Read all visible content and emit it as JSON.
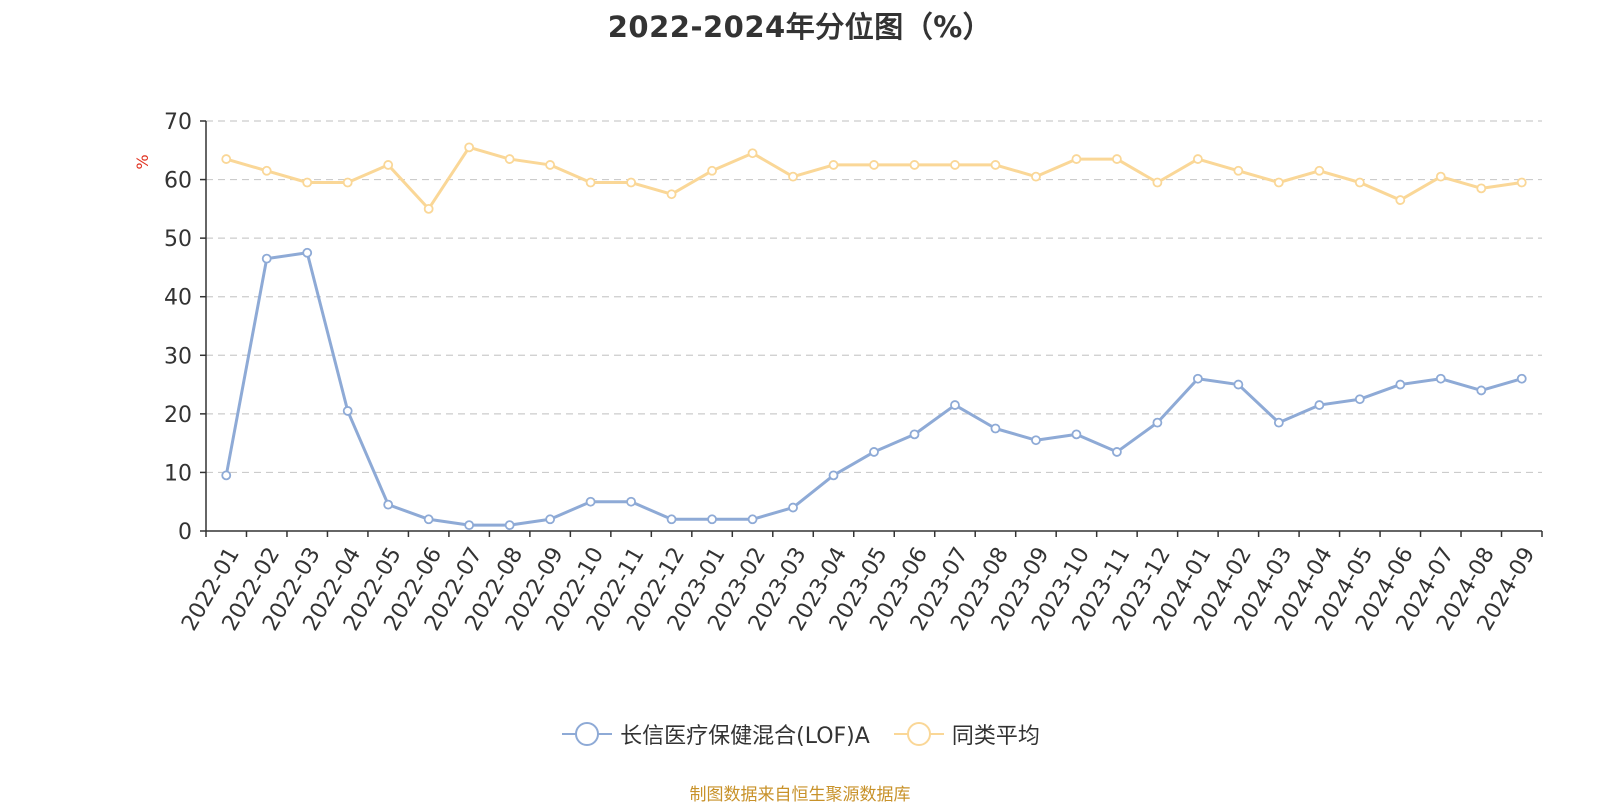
{
  "chart_data": {
    "type": "line",
    "title": "2022-2024年分位图（%）",
    "ylabel": "%",
    "xlabel": "",
    "ylim": [
      0,
      70
    ],
    "yticks": [
      0,
      10,
      20,
      30,
      40,
      50,
      60,
      70
    ],
    "grid": true,
    "legend_position": "bottom",
    "categories": [
      "2022-01",
      "2022-02",
      "2022-03",
      "2022-04",
      "2022-05",
      "2022-06",
      "2022-07",
      "2022-08",
      "2022-09",
      "2022-10",
      "2022-11",
      "2022-12",
      "2023-01",
      "2023-02",
      "2023-03",
      "2023-04",
      "2023-05",
      "2023-06",
      "2023-07",
      "2023-08",
      "2023-09",
      "2023-10",
      "2023-11",
      "2023-12",
      "2024-01",
      "2024-02",
      "2024-03",
      "2024-04",
      "2024-05",
      "2024-06",
      "2024-07",
      "2024-08",
      "2024-09"
    ],
    "series": [
      {
        "name": "长信医疗保健混合(LOF)A",
        "color": "#8eaad6",
        "values": [
          9.5,
          46.5,
          47.5,
          20.5,
          4.5,
          2,
          1,
          1,
          2,
          5,
          5,
          2,
          2,
          2,
          4,
          9.5,
          13.5,
          16.5,
          21.5,
          17.5,
          15.5,
          16.5,
          13.5,
          18.5,
          26,
          25,
          18.5,
          21.5,
          22.5,
          25,
          26,
          24,
          26
        ]
      },
      {
        "name": "同类平均",
        "color": "#fad797",
        "values": [
          63.5,
          61.5,
          59.5,
          59.5,
          62.5,
          55,
          65.5,
          63.5,
          62.5,
          59.5,
          59.5,
          57.5,
          61.5,
          64.5,
          60.5,
          62.5,
          62.5,
          62.5,
          62.5,
          62.5,
          60.5,
          63.5,
          63.5,
          59.5,
          63.5,
          61.5,
          59.5,
          61.5,
          59.5,
          56.5,
          60.5,
          58.5,
          59.5
        ]
      }
    ]
  },
  "footer": {
    "source": "制图数据来自恒生聚源数据库"
  }
}
